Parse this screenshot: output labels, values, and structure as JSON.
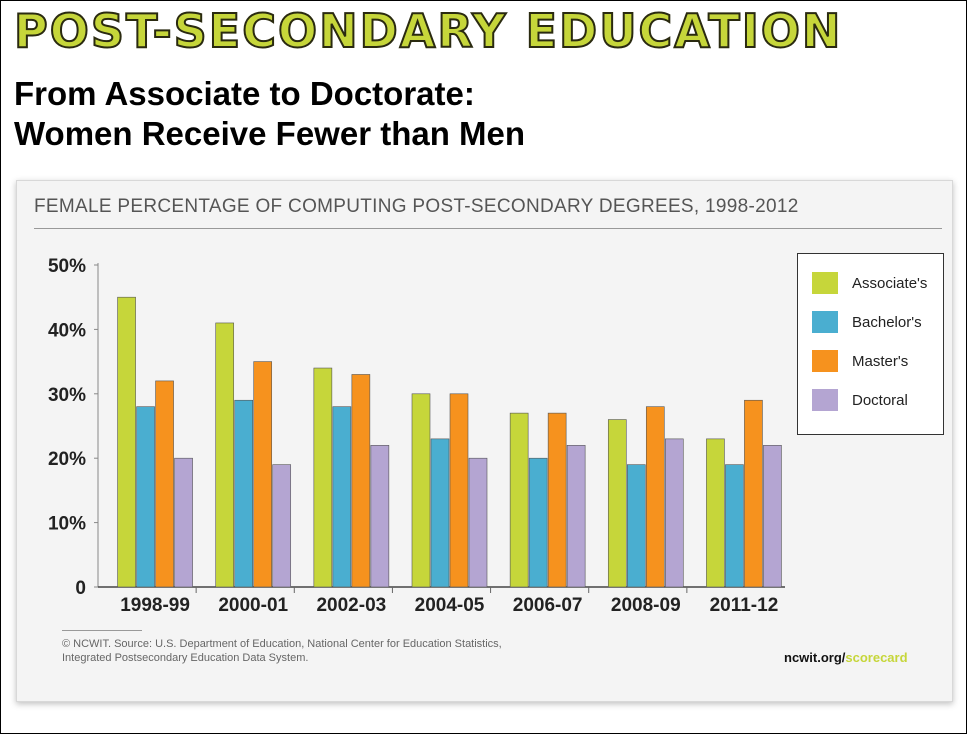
{
  "banner": "POST-SECONDARY EDUCATION",
  "subtitle": {
    "line1": "From Associate to Doctorate:",
    "line2": "Women Receive Fewer than Men"
  },
  "source": {
    "line1": "© NCWIT. Source: U.S. Department of Education, National Center for Education Statistics,",
    "line2": "Integrated Postsecondary Education Data System."
  },
  "brand": {
    "part1": "ncwit.org/",
    "part2": "scorecard"
  },
  "colors": {
    "associate": "#c6d63a",
    "bachelor": "#4aaed0",
    "master": "#f6921e",
    "doctoral": "#b4a5d2"
  },
  "chart_data": {
    "type": "bar",
    "title": "FEMALE PERCENTAGE OF COMPUTING POST-SECONDARY DEGREES, 1998-2012",
    "categories": [
      "1998-99",
      "2000-01",
      "2002-03",
      "2004-05",
      "2006-07",
      "2008-09",
      "2011-12"
    ],
    "series": [
      {
        "name": "Associate's",
        "color": "#c6d63a",
        "values": [
          45,
          41,
          34,
          30,
          27,
          26,
          23
        ]
      },
      {
        "name": "Bachelor's",
        "color": "#4aaed0",
        "values": [
          28,
          29,
          28,
          23,
          20,
          19,
          19
        ]
      },
      {
        "name": "Master's",
        "color": "#f6921e",
        "values": [
          32,
          35,
          33,
          30,
          27,
          28,
          29
        ]
      },
      {
        "name": "Doctoral",
        "color": "#b4a5d2",
        "values": [
          20,
          19,
          22,
          20,
          22,
          23,
          22
        ]
      }
    ],
    "yticks": [
      {
        "value": 0,
        "label": "0"
      },
      {
        "value": 10,
        "label": "10%"
      },
      {
        "value": 20,
        "label": "20%"
      },
      {
        "value": 30,
        "label": "30%"
      },
      {
        "value": 40,
        "label": "40%"
      },
      {
        "value": 50,
        "label": "50%"
      }
    ],
    "ylim": [
      0,
      50
    ],
    "grid": false,
    "legend_position": "top-right"
  }
}
